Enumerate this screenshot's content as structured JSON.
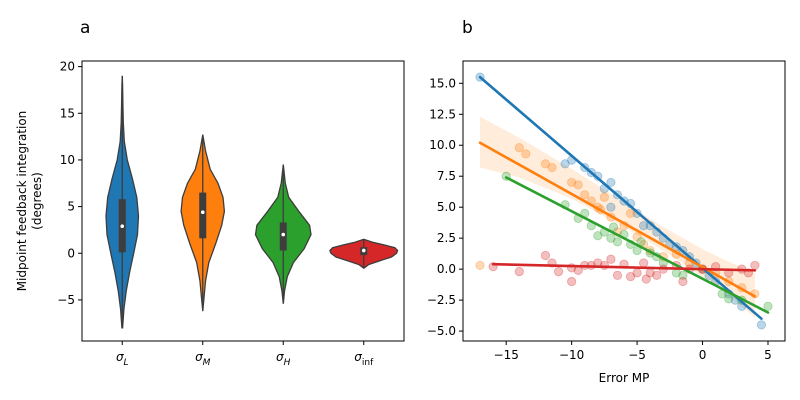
{
  "colors": {
    "blue": "#1f77b4",
    "orange": "#ff7f0e",
    "green": "#2ca02c",
    "red": "#d62728",
    "light_blue": "#9ec7e6",
    "light_orange": "#ffbf86",
    "light_green": "#9fd49f",
    "light_red": "#eb9a9b"
  },
  "chart_data": [
    {
      "panel": "a",
      "type": "violin",
      "ylabel": "Midpoint feedback integration\n(degrees)",
      "xlabel": "",
      "ylim": [
        -9.4,
        20.6
      ],
      "yticks": [
        -5,
        0,
        5,
        10,
        15,
        20
      ],
      "categories": [
        "σ_L",
        "σ_M",
        "σ_H",
        "σ_inf"
      ],
      "violins": [
        {
          "name": "σ_L",
          "color": "#1f77b4",
          "min": -8.0,
          "max": 19.0,
          "q1": 0.1,
          "median": 2.9,
          "q3": 5.8,
          "profile": [
            [
              -8,
              0.01
            ],
            [
              -6,
              0.05
            ],
            [
              -4,
              0.12
            ],
            [
              -2,
              0.22
            ],
            [
              0,
              0.34
            ],
            [
              2,
              0.45
            ],
            [
              4,
              0.48
            ],
            [
              6,
              0.43
            ],
            [
              8,
              0.3
            ],
            [
              10,
              0.15
            ],
            [
              12,
              0.06
            ],
            [
              14,
              0.03
            ],
            [
              16,
              0.02
            ],
            [
              18,
              0.01
            ],
            [
              19,
              0.0
            ]
          ]
        },
        {
          "name": "σ_M",
          "color": "#ff7f0e",
          "min": -6.2,
          "max": 12.7,
          "q1": 1.6,
          "median": 4.4,
          "q3": 6.5,
          "profile": [
            [
              -6.2,
              0.0
            ],
            [
              -5,
              0.03
            ],
            [
              -3,
              0.08
            ],
            [
              -1,
              0.18
            ],
            [
              1,
              0.38
            ],
            [
              3,
              0.56
            ],
            [
              4.5,
              0.64
            ],
            [
              6,
              0.6
            ],
            [
              7.5,
              0.45
            ],
            [
              9,
              0.22
            ],
            [
              11,
              0.08
            ],
            [
              12.7,
              0.0
            ]
          ]
        },
        {
          "name": "σ_H",
          "color": "#2ca02c",
          "min": -5.4,
          "max": 9.5,
          "q1": 0.3,
          "median": 2.0,
          "q3": 3.3,
          "profile": [
            [
              -5.4,
              0.0
            ],
            [
              -4,
              0.04
            ],
            [
              -2.5,
              0.12
            ],
            [
              -1,
              0.3
            ],
            [
              0.5,
              0.62
            ],
            [
              2,
              0.82
            ],
            [
              3,
              0.78
            ],
            [
              4.5,
              0.46
            ],
            [
              6,
              0.16
            ],
            [
              7.5,
              0.06
            ],
            [
              9.5,
              0.0
            ]
          ]
        },
        {
          "name": "σ_inf",
          "color": "#d62728",
          "min": -1.6,
          "max": 1.5,
          "q1": -0.2,
          "median": 0.3,
          "q3": 0.65,
          "profile": [
            [
              -1.6,
              0.0
            ],
            [
              -1.2,
              0.15
            ],
            [
              -0.8,
              0.48
            ],
            [
              -0.4,
              0.82
            ],
            [
              0,
              0.97
            ],
            [
              0.3,
              1.0
            ],
            [
              0.6,
              0.92
            ],
            [
              0.9,
              0.6
            ],
            [
              1.2,
              0.25
            ],
            [
              1.5,
              0.0
            ]
          ]
        }
      ]
    },
    {
      "panel": "b",
      "type": "scatter",
      "xlabel": "Error MP",
      "ylabel": "",
      "xlim": [
        -18.3,
        6.3
      ],
      "ylim": [
        -5.8,
        16.8
      ],
      "xticks": [
        -15,
        -10,
        -5,
        0,
        5
      ],
      "yticks": [
        -5.0,
        -2.5,
        0.0,
        2.5,
        5.0,
        7.5,
        10.0,
        12.5,
        15.0
      ],
      "series": [
        {
          "color": "#1f77b4",
          "points": [
            [
              -17,
              15.5
            ],
            [
              -10,
              8.8
            ],
            [
              -9,
              8.2
            ],
            [
              -10.5,
              8.5
            ],
            [
              -8,
              7.5
            ],
            [
              -7.5,
              6.5
            ],
            [
              -7,
              7
            ],
            [
              -6,
              5.5
            ],
            [
              -5.5,
              5.3
            ],
            [
              -5,
              4.5
            ],
            [
              -4.5,
              3.5
            ],
            [
              -4,
              3.5
            ],
            [
              -3.5,
              3
            ],
            [
              -3,
              2.5
            ],
            [
              -2.5,
              2
            ],
            [
              -2,
              1.8
            ],
            [
              -1.5,
              1.5
            ],
            [
              -1,
              1
            ],
            [
              -0.5,
              0.5
            ],
            [
              0,
              0
            ],
            [
              0.5,
              -0.5
            ],
            [
              1,
              -1
            ],
            [
              2,
              -2
            ],
            [
              2.5,
              -2.5
            ],
            [
              3,
              -3
            ],
            [
              4.5,
              -4.5
            ],
            [
              -7,
              5
            ],
            [
              -6.5,
              6
            ],
            [
              -8.5,
              7.8
            ]
          ],
          "fit": {
            "x": [
              -17,
              4.5
            ],
            "y": [
              15.5,
              -4.0
            ]
          },
          "band": null
        },
        {
          "color": "#ff7f0e",
          "points": [
            [
              -17,
              0.3
            ],
            [
              -14,
              9.8
            ],
            [
              -13.5,
              9.3
            ],
            [
              -12,
              8.5
            ],
            [
              -11.5,
              8.2
            ],
            [
              -10,
              7
            ],
            [
              -9.5,
              6.8
            ],
            [
              -9,
              6
            ],
            [
              -8.5,
              5.5
            ],
            [
              -8,
              5
            ],
            [
              -7.5,
              5.8
            ],
            [
              -7,
              4.2
            ],
            [
              -6.5,
              3
            ],
            [
              -6,
              3.5
            ],
            [
              -5,
              2.6
            ],
            [
              -4.5,
              2
            ],
            [
              -4,
              1.5
            ],
            [
              -3,
              1
            ],
            [
              -2,
              1.2
            ],
            [
              -1,
              0.5
            ],
            [
              0,
              0
            ],
            [
              1,
              -0.3
            ],
            [
              2,
              -1
            ],
            [
              3,
              -1.5
            ],
            [
              4,
              -2
            ],
            [
              -5.5,
              4.5
            ],
            [
              -7.8,
              4.8
            ]
          ],
          "fit": {
            "x": [
              -17,
              4
            ],
            "y": [
              10.2,
              -2.2
            ]
          },
          "band": {
            "x": [
              -17,
              -14,
              -10,
              -6,
              -3,
              0,
              2,
              4
            ],
            "upper": [
              12.3,
              10.6,
              8.1,
              5.4,
              3.4,
              1.6,
              0.6,
              -0.3
            ],
            "lower": [
              8.2,
              7.4,
              5.7,
              3.4,
              1.5,
              -0.6,
              -2.1,
              -3.9
            ]
          }
        },
        {
          "color": "#2ca02c",
          "points": [
            [
              -15,
              7.5
            ],
            [
              -10.5,
              5.2
            ],
            [
              -9.5,
              4.1
            ],
            [
              -9,
              4.5
            ],
            [
              -8.5,
              3.5
            ],
            [
              -8,
              2.7
            ],
            [
              -7.5,
              3
            ],
            [
              -7,
              2.5
            ],
            [
              -6.5,
              2.2
            ],
            [
              -6,
              2.8
            ],
            [
              -5.5,
              2
            ],
            [
              -5,
              1.5
            ],
            [
              -4,
              1.3
            ],
            [
              -3.5,
              1
            ],
            [
              -3,
              0.5
            ],
            [
              -2,
              -0.3
            ],
            [
              -1.5,
              -0.5
            ],
            [
              1.5,
              -2
            ],
            [
              2,
              -2.4
            ],
            [
              3,
              -2.5
            ],
            [
              5,
              -3
            ],
            [
              -6.8,
              3.4
            ],
            [
              -4.7,
              2.2
            ]
          ],
          "fit": {
            "x": [
              -15,
              5
            ],
            "y": [
              7.4,
              -3.5
            ]
          },
          "band": null
        },
        {
          "color": "#d62728",
          "points": [
            [
              -16,
              0.2
            ],
            [
              -14,
              -0.2
            ],
            [
              -12,
              1.1
            ],
            [
              -11.5,
              0.5
            ],
            [
              -11,
              -0.2
            ],
            [
              -10,
              -1
            ],
            [
              -10,
              0.1
            ],
            [
              -9.5,
              -0.1
            ],
            [
              -9,
              0.3
            ],
            [
              -8.5,
              0.3
            ],
            [
              -8,
              0.5
            ],
            [
              -7.5,
              0.3
            ],
            [
              -7,
              0.8
            ],
            [
              -6.5,
              -0.5
            ],
            [
              -6,
              0.4
            ],
            [
              -5.5,
              -0.6
            ],
            [
              -5,
              -0.3
            ],
            [
              -4.5,
              0.5
            ],
            [
              -4,
              -0.3
            ],
            [
              -3.5,
              -0.5
            ],
            [
              -3,
              0
            ],
            [
              -2,
              0.3
            ],
            [
              -1,
              0
            ],
            [
              0,
              0
            ],
            [
              1,
              0.2
            ],
            [
              2,
              -0.3
            ],
            [
              3,
              0
            ],
            [
              3.5,
              -0.3
            ],
            [
              4,
              0.3
            ],
            [
              -4.3,
              -0.8
            ],
            [
              -1.5,
              -1
            ]
          ],
          "fit": {
            "x": [
              -16,
              4
            ],
            "y": [
              0.4,
              -0.1
            ]
          },
          "band": null
        }
      ]
    }
  ],
  "panel_a_title": "a",
  "panel_b_title": "b"
}
